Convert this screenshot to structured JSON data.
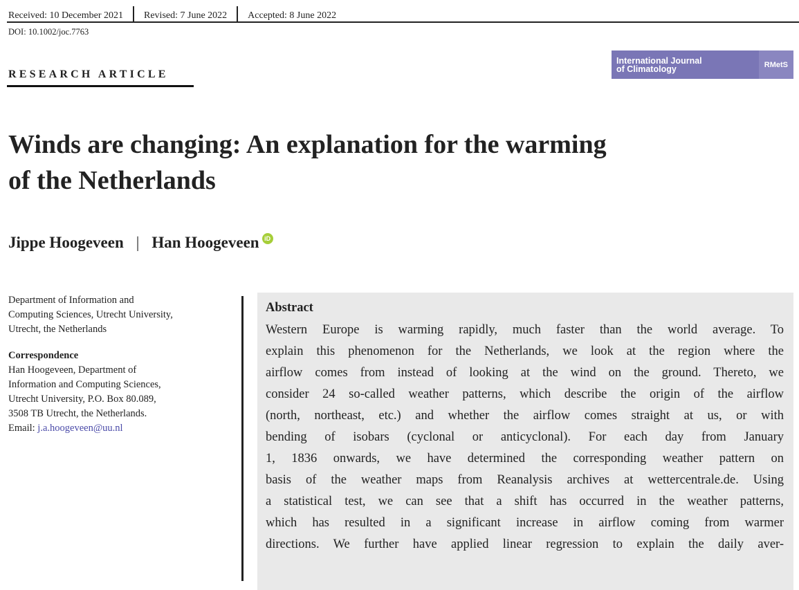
{
  "history": {
    "received": "Received: 10 December 2021",
    "revised": "Revised: 7 June 2022",
    "accepted": "Accepted: 8 June 2022"
  },
  "doi": "DOI: 10.1002/joc.7763",
  "article_type": "RESEARCH ARTICLE",
  "journal": {
    "line1": "International Journal",
    "line2": "of Climatology",
    "publisher": "RMetS",
    "color": "#7a76b6"
  },
  "title": {
    "line1": "Winds are changing: An explanation for the warming",
    "line2": "of the Netherlands"
  },
  "authors": [
    {
      "name": "Jippe Hoogeveen"
    },
    {
      "name": "Han Hoogeveen",
      "orcid": "iD"
    }
  ],
  "author_separator": "|",
  "affiliation": [
    "Department of Information and",
    "Computing Sciences, Utrecht University,",
    "Utrecht, the Netherlands"
  ],
  "correspondence": {
    "heading": "Correspondence",
    "lines": [
      "Han Hoogeveen, Department of",
      "Information and Computing Sciences,",
      "Utrecht University, P.O. Box 80.089,",
      "3508 TB Utrecht, the Netherlands."
    ],
    "email_label": "Email: ",
    "email": "j.a.hoogeveen@uu.nl"
  },
  "abstract": {
    "heading": "Abstract",
    "lines": [
      "Western Europe is warming rapidly, much faster than the world average. To",
      "explain this phenomenon for the Netherlands, we look at the region where the",
      "airflow comes from instead of looking at the wind on the ground. Thereto, we",
      "consider 24 so-called weather patterns, which describe the origin of the airflow",
      "(north, northeast, etc.) and whether the airflow comes straight at us, or with",
      "bending of isobars (cyclonal or anticyclonal). For each day from January",
      "1, 1836 onwards, we have determined the corresponding weather pattern on",
      "basis of the weather maps from Reanalysis archives at wettercentrale.de. Using",
      "a statistical test, we can see that a shift has occurred in the weather patterns,",
      "which has resulted in a significant increase in airflow coming from warmer",
      "directions. We further have applied linear regression to explain the daily aver-"
    ]
  }
}
